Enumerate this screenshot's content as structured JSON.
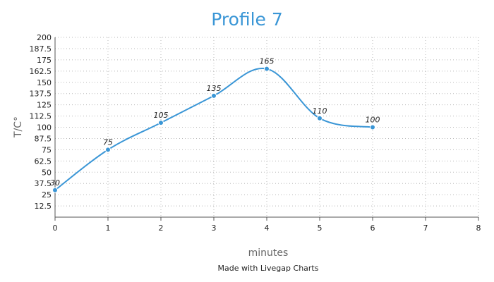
{
  "chart_data": {
    "type": "line",
    "title": "Profile 7",
    "xlabel": "minutes",
    "ylabel": "T/C°",
    "credit": "Made with Livegap Charts",
    "xlim": [
      0,
      8
    ],
    "ylim": [
      0,
      200
    ],
    "x_ticks": [
      "0",
      "1",
      "2",
      "3",
      "4",
      "5",
      "6",
      "7",
      "8"
    ],
    "y_ticks": [
      "200",
      "187.5",
      "175",
      "162.5",
      "150",
      "137.5",
      "125",
      "112.5",
      "100",
      "87.5",
      "75",
      "62.5",
      "50",
      "37.5",
      "25",
      "12.5"
    ],
    "grid": true,
    "line_color": "#3a96d6",
    "series": [
      {
        "x": [
          0,
          1,
          2,
          3,
          4,
          5,
          6
        ],
        "values": [
          30,
          75,
          105,
          135,
          165,
          110,
          100
        ],
        "labels": [
          "30",
          "75",
          "105",
          "135",
          "165",
          "110",
          "100"
        ]
      }
    ]
  }
}
